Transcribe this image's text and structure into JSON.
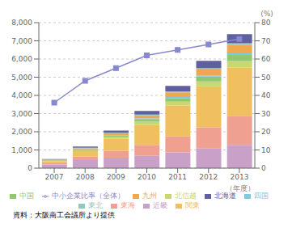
{
  "chart_data": {
    "type": "bar",
    "stacked": true,
    "grid": true,
    "legend": "bottom",
    "categories": [
      2007,
      2008,
      2009,
      2010,
      2011,
      2012,
      2013
    ],
    "xlabel": "（年度）",
    "y2label": "(%)",
    "annotations": [
      "資料：大阪商工会議所より提供"
    ],
    "ylim": [
      0,
      8000
    ],
    "yticks": [
      0,
      {
        "value": 1000,
        "label": "1,000"
      },
      {
        "value": 2000,
        "label": "2,000"
      },
      {
        "value": 3000,
        "label": "3,000"
      },
      {
        "value": 4000,
        "label": "4,000"
      },
      {
        "value": 5000,
        "label": "5,000"
      },
      {
        "value": 6000,
        "label": "6,000"
      },
      {
        "value": 7000,
        "label": "7,000"
      },
      {
        "value": 8000,
        "label": "8,000"
      }
    ],
    "y2lim": [
      0,
      80
    ],
    "y2ticks": [
      0,
      10,
      20,
      30,
      40,
      50,
      60,
      70,
      80
    ],
    "series": [
      {
        "name": "近畿",
        "color": "#c8a0c8",
        "values": [
          200,
          450,
          580,
          680,
          870,
          1100,
          1280
        ]
      },
      {
        "name": "東海",
        "color": "#f0a090",
        "values": [
          100,
          200,
          380,
          600,
          870,
          1150,
          1600
        ]
      },
      {
        "name": "関東",
        "color": "#f0c060",
        "values": [
          80,
          280,
          650,
          1100,
          1700,
          2250,
          2650
        ]
      },
      {
        "name": "北信越",
        "color": "#c8d870",
        "values": [
          20,
          50,
          100,
          180,
          220,
          270,
          360
        ]
      },
      {
        "name": "中国",
        "color": "#90c870",
        "values": [
          30,
          55,
          90,
          140,
          200,
          260,
          330
        ]
      },
      {
        "name": "四国",
        "color": "#80c8e0",
        "values": [
          5,
          10,
          20,
          40,
          55,
          70,
          90
        ]
      },
      {
        "name": "九州",
        "color": "#f0a850",
        "values": [
          30,
          60,
          100,
          160,
          250,
          320,
          460
        ]
      },
      {
        "name": "東北",
        "color": "#90c8c0",
        "values": [
          10,
          20,
          30,
          50,
          60,
          80,
          100
        ]
      },
      {
        "name": "北海道",
        "color": "#6060a0",
        "values": [
          25,
          60,
          120,
          200,
          300,
          400,
          500
        ]
      },
      {
        "name": "中小企業比率（全体）",
        "type": "line",
        "axis": "y2",
        "marker": "square",
        "color": "#8888cc",
        "values": [
          36,
          48,
          55,
          62,
          65,
          68,
          71
        ]
      }
    ]
  }
}
